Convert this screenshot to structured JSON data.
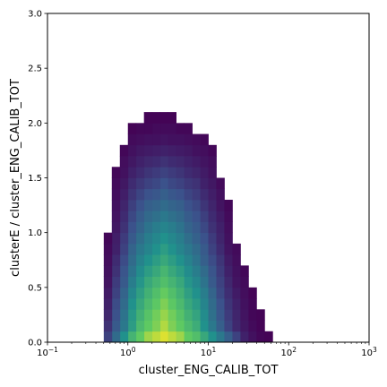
{
  "chart_data": {
    "type": "heatmap",
    "title": "",
    "xlabel": "cluster_ENG_CALIB_TOT",
    "ylabel": "clusterE / cluster_ENG_CALIB_TOT",
    "xscale": "log",
    "xlim": [
      0.1,
      1000
    ],
    "ylim": [
      0.0,
      3.0
    ],
    "x_ticks": [
      {
        "value": 0.1,
        "base": "10",
        "exp": "−1"
      },
      {
        "value": 1,
        "base": "10",
        "exp": "0"
      },
      {
        "value": 10,
        "base": "10",
        "exp": "1"
      },
      {
        "value": 100,
        "base": "10",
        "exp": "2"
      },
      {
        "value": 1000,
        "base": "10",
        "exp": "3"
      }
    ],
    "y_ticks": [
      "0.0",
      "0.5",
      "1.0",
      "1.5",
      "2.0",
      "2.5",
      "3.0"
    ],
    "grid": false,
    "colormap": "viridis",
    "bins": {
      "x_count": 40,
      "y_count": 30,
      "x_log10_min": -1,
      "x_log10_max": 3,
      "y_min": 0,
      "y_max": 3
    },
    "color_stops": [
      "#440154",
      "#3b528b",
      "#21918c",
      "#5ec962",
      "#fde725"
    ],
    "cells": [
      [
        14,
        0,
        0.95
      ],
      [
        13,
        0,
        0.9
      ],
      [
        15,
        0,
        0.9
      ],
      [
        12,
        0,
        0.85
      ],
      [
        16,
        0,
        0.85
      ],
      [
        11,
        0,
        0.75
      ],
      [
        17,
        0,
        0.75
      ],
      [
        18,
        0,
        0.7
      ],
      [
        10,
        0,
        0.65
      ],
      [
        19,
        0,
        0.6
      ],
      [
        9,
        0,
        0.5
      ],
      [
        20,
        0,
        0.5
      ],
      [
        8,
        0,
        0.35
      ],
      [
        21,
        0,
        0.4
      ],
      [
        7,
        0,
        0.2
      ],
      [
        22,
        0,
        0.3
      ],
      [
        23,
        0,
        0.2
      ],
      [
        24,
        0,
        0.1
      ],
      [
        25,
        0,
        0.05
      ],
      [
        26,
        0,
        0.02
      ],
      [
        27,
        0,
        0.01
      ],
      [
        14,
        1,
        0.88
      ],
      [
        13,
        1,
        0.8
      ],
      [
        15,
        1,
        0.8
      ],
      [
        12,
        1,
        0.75
      ],
      [
        16,
        1,
        0.75
      ],
      [
        11,
        1,
        0.68
      ],
      [
        17,
        1,
        0.68
      ],
      [
        10,
        1,
        0.55
      ],
      [
        18,
        1,
        0.62
      ],
      [
        19,
        1,
        0.5
      ],
      [
        9,
        1,
        0.4
      ],
      [
        20,
        1,
        0.4
      ],
      [
        8,
        1,
        0.28
      ],
      [
        21,
        1,
        0.3
      ],
      [
        22,
        1,
        0.2
      ],
      [
        7,
        1,
        0.15
      ],
      [
        23,
        1,
        0.12
      ],
      [
        24,
        1,
        0.07
      ],
      [
        25,
        1,
        0.03
      ],
      [
        26,
        1,
        0.01
      ],
      [
        14,
        2,
        0.84
      ],
      [
        13,
        2,
        0.78
      ],
      [
        15,
        2,
        0.78
      ],
      [
        12,
        2,
        0.72
      ],
      [
        16,
        2,
        0.72
      ],
      [
        11,
        2,
        0.64
      ],
      [
        17,
        2,
        0.64
      ],
      [
        10,
        2,
        0.53
      ],
      [
        18,
        2,
        0.58
      ],
      [
        19,
        2,
        0.48
      ],
      [
        9,
        2,
        0.38
      ],
      [
        20,
        2,
        0.37
      ],
      [
        8,
        2,
        0.25
      ],
      [
        21,
        2,
        0.27
      ],
      [
        22,
        2,
        0.18
      ],
      [
        7,
        2,
        0.12
      ],
      [
        23,
        2,
        0.11
      ],
      [
        24,
        2,
        0.06
      ],
      [
        25,
        2,
        0.02
      ],
      [
        26,
        2,
        0.01
      ],
      [
        14,
        3,
        0.8
      ],
      [
        13,
        3,
        0.74
      ],
      [
        15,
        3,
        0.74
      ],
      [
        12,
        3,
        0.68
      ],
      [
        16,
        3,
        0.68
      ],
      [
        11,
        3,
        0.6
      ],
      [
        17,
        3,
        0.6
      ],
      [
        10,
        3,
        0.5
      ],
      [
        18,
        3,
        0.54
      ],
      [
        19,
        3,
        0.45
      ],
      [
        9,
        3,
        0.35
      ],
      [
        20,
        3,
        0.35
      ],
      [
        8,
        3,
        0.23
      ],
      [
        21,
        3,
        0.25
      ],
      [
        22,
        3,
        0.16
      ],
      [
        7,
        3,
        0.1
      ],
      [
        23,
        3,
        0.1
      ],
      [
        24,
        3,
        0.05
      ],
      [
        25,
        3,
        0.02
      ],
      [
        14,
        4,
        0.76
      ],
      [
        13,
        4,
        0.7
      ],
      [
        15,
        4,
        0.7
      ],
      [
        12,
        4,
        0.64
      ],
      [
        16,
        4,
        0.64
      ],
      [
        11,
        4,
        0.56
      ],
      [
        17,
        4,
        0.56
      ],
      [
        10,
        4,
        0.46
      ],
      [
        18,
        4,
        0.5
      ],
      [
        19,
        4,
        0.42
      ],
      [
        9,
        4,
        0.32
      ],
      [
        20,
        4,
        0.32
      ],
      [
        8,
        4,
        0.2
      ],
      [
        21,
        4,
        0.22
      ],
      [
        22,
        4,
        0.14
      ],
      [
        7,
        4,
        0.08
      ],
      [
        23,
        4,
        0.08
      ],
      [
        24,
        4,
        0.04
      ],
      [
        25,
        4,
        0.01
      ],
      [
        14,
        5,
        0.7
      ],
      [
        13,
        5,
        0.65
      ],
      [
        15,
        5,
        0.65
      ],
      [
        12,
        5,
        0.6
      ],
      [
        16,
        5,
        0.6
      ],
      [
        11,
        5,
        0.52
      ],
      [
        17,
        5,
        0.52
      ],
      [
        10,
        5,
        0.42
      ],
      [
        18,
        5,
        0.46
      ],
      [
        19,
        5,
        0.38
      ],
      [
        9,
        5,
        0.28
      ],
      [
        20,
        5,
        0.28
      ],
      [
        8,
        5,
        0.18
      ],
      [
        21,
        5,
        0.2
      ],
      [
        22,
        5,
        0.12
      ],
      [
        7,
        5,
        0.06
      ],
      [
        23,
        5,
        0.06
      ],
      [
        24,
        5,
        0.03
      ],
      [
        14,
        6,
        0.66
      ],
      [
        13,
        6,
        0.6
      ],
      [
        15,
        6,
        0.6
      ],
      [
        12,
        6,
        0.55
      ],
      [
        16,
        6,
        0.55
      ],
      [
        11,
        6,
        0.48
      ],
      [
        17,
        6,
        0.48
      ],
      [
        10,
        6,
        0.38
      ],
      [
        18,
        6,
        0.42
      ],
      [
        19,
        6,
        0.35
      ],
      [
        9,
        6,
        0.26
      ],
      [
        20,
        6,
        0.26
      ],
      [
        8,
        6,
        0.15
      ],
      [
        21,
        6,
        0.18
      ],
      [
        22,
        6,
        0.1
      ],
      [
        7,
        6,
        0.05
      ],
      [
        23,
        6,
        0.05
      ],
      [
        24,
        6,
        0.02
      ],
      [
        14,
        7,
        0.6
      ],
      [
        13,
        7,
        0.55
      ],
      [
        15,
        7,
        0.55
      ],
      [
        12,
        7,
        0.5
      ],
      [
        16,
        7,
        0.5
      ],
      [
        11,
        7,
        0.44
      ],
      [
        17,
        7,
        0.44
      ],
      [
        10,
        7,
        0.35
      ],
      [
        18,
        7,
        0.38
      ],
      [
        19,
        7,
        0.3
      ],
      [
        9,
        7,
        0.23
      ],
      [
        20,
        7,
        0.23
      ],
      [
        8,
        7,
        0.13
      ],
      [
        21,
        7,
        0.16
      ],
      [
        22,
        7,
        0.08
      ],
      [
        7,
        7,
        0.04
      ],
      [
        23,
        7,
        0.04
      ],
      [
        14,
        8,
        0.55
      ],
      [
        13,
        8,
        0.5
      ],
      [
        15,
        8,
        0.5
      ],
      [
        12,
        8,
        0.45
      ],
      [
        16,
        8,
        0.45
      ],
      [
        11,
        8,
        0.4
      ],
      [
        17,
        8,
        0.4
      ],
      [
        10,
        8,
        0.32
      ],
      [
        18,
        8,
        0.35
      ],
      [
        19,
        8,
        0.28
      ],
      [
        9,
        8,
        0.2
      ],
      [
        20,
        8,
        0.2
      ],
      [
        8,
        8,
        0.1
      ],
      [
        21,
        8,
        0.13
      ],
      [
        22,
        8,
        0.06
      ],
      [
        7,
        8,
        0.03
      ],
      [
        23,
        8,
        0.03
      ],
      [
        14,
        9,
        0.5
      ],
      [
        13,
        9,
        0.46
      ],
      [
        15,
        9,
        0.46
      ],
      [
        12,
        9,
        0.42
      ],
      [
        16,
        9,
        0.42
      ],
      [
        11,
        9,
        0.36
      ],
      [
        17,
        9,
        0.36
      ],
      [
        10,
        9,
        0.28
      ],
      [
        18,
        9,
        0.31
      ],
      [
        19,
        9,
        0.25
      ],
      [
        9,
        9,
        0.18
      ],
      [
        20,
        9,
        0.18
      ],
      [
        8,
        9,
        0.09
      ],
      [
        21,
        9,
        0.11
      ],
      [
        22,
        9,
        0.05
      ],
      [
        7,
        9,
        0.02
      ],
      [
        14,
        10,
        0.45
      ],
      [
        13,
        10,
        0.42
      ],
      [
        15,
        10,
        0.42
      ],
      [
        12,
        10,
        0.38
      ],
      [
        16,
        10,
        0.38
      ],
      [
        11,
        10,
        0.32
      ],
      [
        17,
        10,
        0.32
      ],
      [
        10,
        10,
        0.25
      ],
      [
        18,
        10,
        0.28
      ],
      [
        19,
        10,
        0.22
      ],
      [
        9,
        10,
        0.15
      ],
      [
        20,
        10,
        0.15
      ],
      [
        8,
        10,
        0.07
      ],
      [
        21,
        10,
        0.1
      ],
      [
        22,
        10,
        0.04
      ],
      [
        14,
        11,
        0.4
      ],
      [
        13,
        11,
        0.37
      ],
      [
        15,
        11,
        0.37
      ],
      [
        12,
        11,
        0.34
      ],
      [
        16,
        11,
        0.34
      ],
      [
        11,
        11,
        0.29
      ],
      [
        17,
        11,
        0.29
      ],
      [
        10,
        11,
        0.22
      ],
      [
        18,
        11,
        0.25
      ],
      [
        19,
        11,
        0.19
      ],
      [
        9,
        11,
        0.13
      ],
      [
        20,
        11,
        0.13
      ],
      [
        8,
        11,
        0.06
      ],
      [
        21,
        11,
        0.08
      ],
      [
        22,
        11,
        0.03
      ],
      [
        14,
        12,
        0.35
      ],
      [
        13,
        12,
        0.32
      ],
      [
        15,
        12,
        0.32
      ],
      [
        12,
        12,
        0.3
      ],
      [
        16,
        12,
        0.3
      ],
      [
        11,
        12,
        0.25
      ],
      [
        17,
        12,
        0.25
      ],
      [
        10,
        12,
        0.19
      ],
      [
        18,
        12,
        0.22
      ],
      [
        19,
        12,
        0.16
      ],
      [
        9,
        12,
        0.11
      ],
      [
        20,
        12,
        0.11
      ],
      [
        8,
        12,
        0.05
      ],
      [
        21,
        12,
        0.06
      ],
      [
        22,
        12,
        0.02
      ],
      [
        14,
        13,
        0.3
      ],
      [
        13,
        13,
        0.27
      ],
      [
        15,
        13,
        0.27
      ],
      [
        12,
        13,
        0.25
      ],
      [
        16,
        13,
        0.25
      ],
      [
        11,
        13,
        0.21
      ],
      [
        17,
        13,
        0.21
      ],
      [
        10,
        13,
        0.16
      ],
      [
        18,
        13,
        0.18
      ],
      [
        19,
        13,
        0.13
      ],
      [
        9,
        13,
        0.09
      ],
      [
        20,
        13,
        0.09
      ],
      [
        8,
        13,
        0.04
      ],
      [
        21,
        13,
        0.05
      ],
      [
        14,
        14,
        0.25
      ],
      [
        13,
        14,
        0.22
      ],
      [
        15,
        14,
        0.22
      ],
      [
        12,
        14,
        0.2
      ],
      [
        16,
        14,
        0.2
      ],
      [
        11,
        14,
        0.17
      ],
      [
        17,
        14,
        0.17
      ],
      [
        10,
        14,
        0.13
      ],
      [
        18,
        14,
        0.15
      ],
      [
        19,
        14,
        0.1
      ],
      [
        9,
        14,
        0.07
      ],
      [
        20,
        14,
        0.07
      ],
      [
        8,
        14,
        0.03
      ],
      [
        21,
        14,
        0.03
      ],
      [
        14,
        15,
        0.2
      ],
      [
        13,
        15,
        0.18
      ],
      [
        15,
        15,
        0.18
      ],
      [
        12,
        15,
        0.16
      ],
      [
        16,
        15,
        0.16
      ],
      [
        11,
        15,
        0.13
      ],
      [
        17,
        15,
        0.13
      ],
      [
        10,
        15,
        0.1
      ],
      [
        18,
        15,
        0.11
      ],
      [
        19,
        15,
        0.08
      ],
      [
        9,
        15,
        0.05
      ],
      [
        20,
        15,
        0.05
      ],
      [
        8,
        15,
        0.02
      ],
      [
        14,
        16,
        0.15
      ],
      [
        13,
        16,
        0.13
      ],
      [
        15,
        16,
        0.13
      ],
      [
        12,
        16,
        0.12
      ],
      [
        16,
        16,
        0.12
      ],
      [
        11,
        16,
        0.1
      ],
      [
        17,
        16,
        0.1
      ],
      [
        10,
        16,
        0.07
      ],
      [
        18,
        16,
        0.08
      ],
      [
        19,
        16,
        0.06
      ],
      [
        9,
        16,
        0.04
      ],
      [
        20,
        16,
        0.04
      ],
      [
        14,
        17,
        0.1
      ],
      [
        13,
        17,
        0.09
      ],
      [
        15,
        17,
        0.09
      ],
      [
        12,
        17,
        0.08
      ],
      [
        16,
        17,
        0.08
      ],
      [
        11,
        17,
        0.07
      ],
      [
        17,
        17,
        0.07
      ],
      [
        10,
        17,
        0.05
      ],
      [
        18,
        17,
        0.05
      ],
      [
        19,
        17,
        0.04
      ],
      [
        9,
        17,
        0.02
      ],
      [
        20,
        17,
        0.02
      ],
      [
        14,
        18,
        0.06
      ],
      [
        13,
        18,
        0.05
      ],
      [
        15,
        18,
        0.05
      ],
      [
        12,
        18,
        0.05
      ],
      [
        16,
        18,
        0.05
      ],
      [
        11,
        18,
        0.04
      ],
      [
        17,
        18,
        0.04
      ],
      [
        10,
        18,
        0.03
      ],
      [
        18,
        18,
        0.03
      ],
      [
        19,
        18,
        0.02
      ],
      [
        14,
        19,
        0.03
      ],
      [
        13,
        19,
        0.03
      ],
      [
        15,
        19,
        0.03
      ],
      [
        12,
        19,
        0.02
      ],
      [
        16,
        19,
        0.02
      ],
      [
        11,
        19,
        0.02
      ],
      [
        17,
        19,
        0.02
      ],
      [
        10,
        19,
        0.01
      ],
      [
        14,
        20,
        0.01
      ],
      [
        13,
        20,
        0.01
      ],
      [
        15,
        20,
        0.01
      ],
      [
        12,
        20,
        0.01
      ]
    ]
  }
}
